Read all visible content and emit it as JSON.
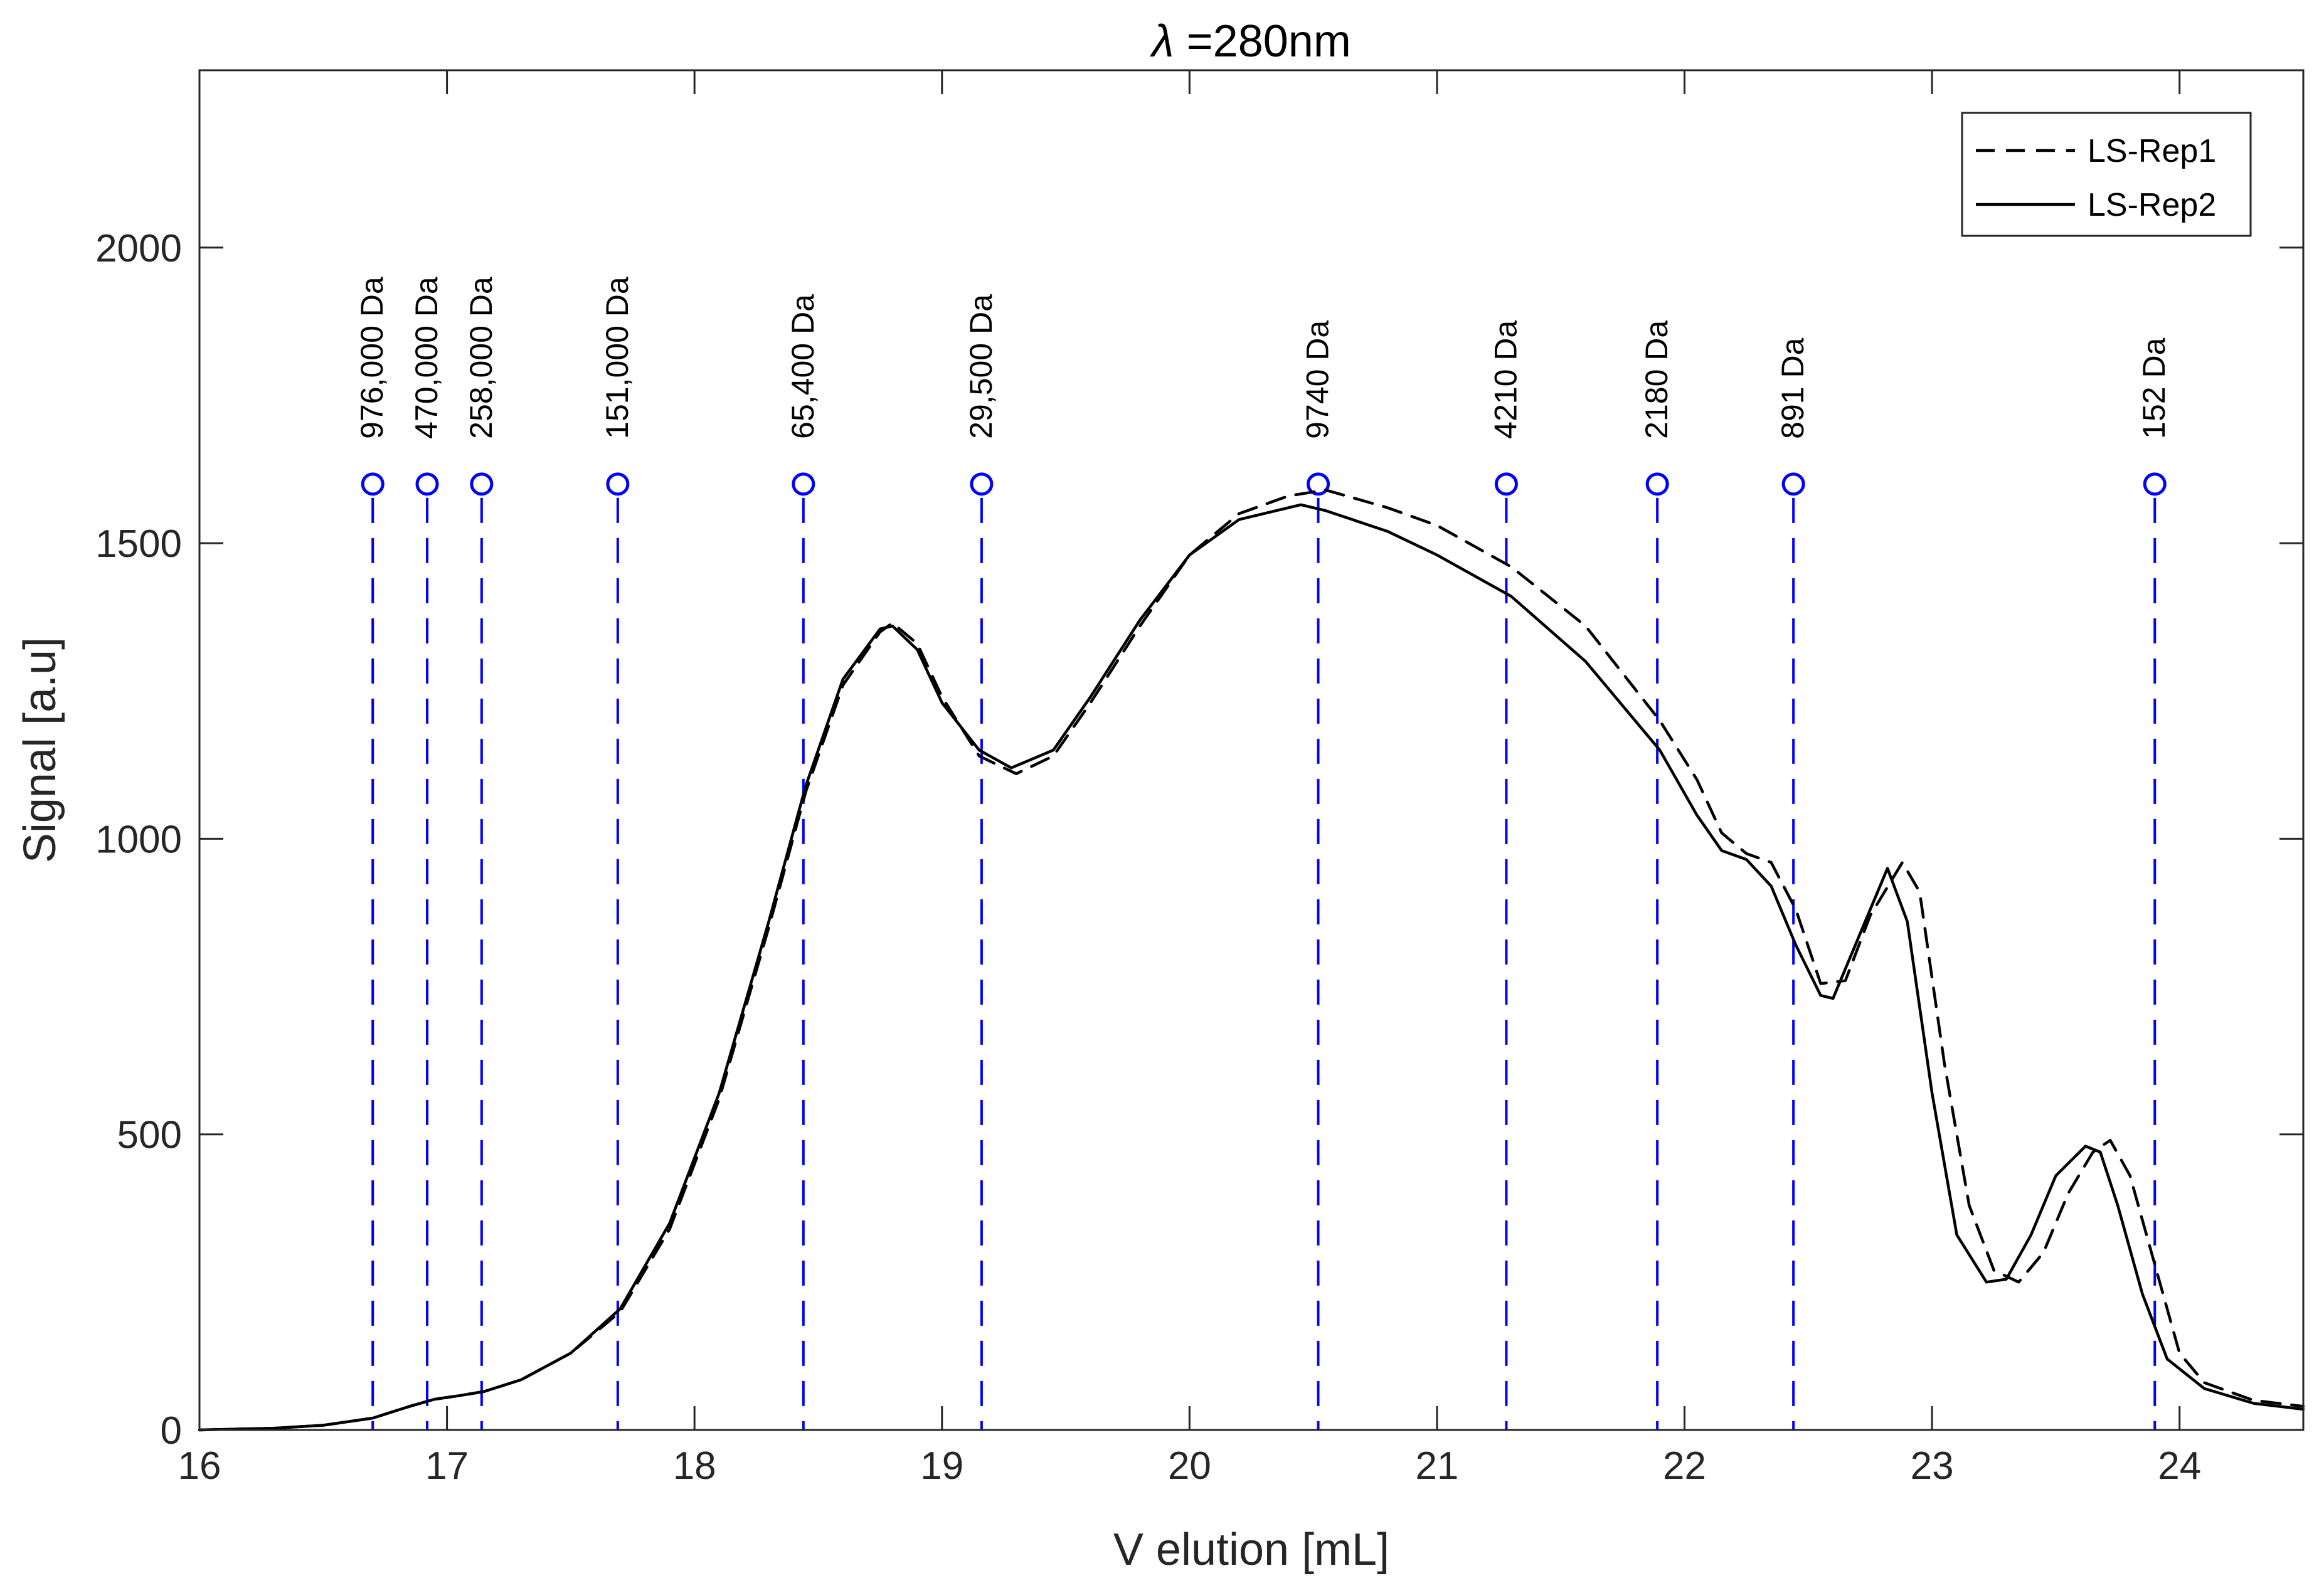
{
  "chart_data": {
    "type": "line",
    "title": "λ =280nm",
    "title_symbol": "λ",
    "title_rest": " =280nm",
    "xlabel": "V elution [mL]",
    "ylabel": "Signal  [a.u]",
    "xlim": [
      16,
      24.5
    ],
    "ylim": [
      0,
      2300
    ],
    "xticks": [
      16,
      17,
      18,
      19,
      20,
      21,
      22,
      23,
      24
    ],
    "yticks": [
      0,
      500,
      1000,
      1500,
      2000
    ],
    "grid": false,
    "legend_position": "top-right",
    "series": [
      {
        "name": "LS-Rep1",
        "style": "dashed",
        "color": "#000000",
        "x": [
          16.0,
          16.3,
          16.5,
          16.7,
          16.85,
          16.95,
          17.05,
          17.15,
          17.3,
          17.5,
          17.7,
          17.9,
          18.1,
          18.3,
          18.45,
          18.6,
          18.75,
          18.8,
          18.9,
          19.0,
          19.15,
          19.3,
          19.45,
          19.6,
          19.8,
          20.0,
          20.2,
          20.4,
          20.55,
          20.8,
          21.0,
          21.3,
          21.6,
          21.9,
          22.05,
          22.15,
          22.25,
          22.35,
          22.45,
          22.55,
          22.65,
          22.75,
          22.88,
          22.95,
          23.05,
          23.15,
          23.25,
          23.35,
          23.45,
          23.55,
          23.65,
          23.72,
          23.8,
          23.9,
          24.0,
          24.1,
          24.3,
          24.5
        ],
        "y": [
          0,
          3,
          8,
          20,
          40,
          52,
          58,
          65,
          85,
          130,
          200,
          340,
          560,
          850,
          1080,
          1260,
          1350,
          1365,
          1330,
          1240,
          1140,
          1110,
          1140,
          1230,
          1360,
          1480,
          1550,
          1580,
          1590,
          1560,
          1530,
          1460,
          1360,
          1200,
          1100,
          1010,
          975,
          960,
          880,
          755,
          760,
          870,
          960,
          910,
          620,
          380,
          270,
          250,
          300,
          400,
          470,
          490,
          430,
          280,
          130,
          80,
          50,
          40
        ]
      },
      {
        "name": "LS-Rep2",
        "style": "solid",
        "color": "#000000",
        "x": [
          16.0,
          16.3,
          16.5,
          16.7,
          16.85,
          16.95,
          17.05,
          17.15,
          17.3,
          17.5,
          17.7,
          17.9,
          18.1,
          18.3,
          18.45,
          18.6,
          18.75,
          18.8,
          18.9,
          19.0,
          19.15,
          19.28,
          19.45,
          19.6,
          19.8,
          20.0,
          20.2,
          20.45,
          20.55,
          20.8,
          21.0,
          21.3,
          21.6,
          21.9,
          22.05,
          22.15,
          22.25,
          22.35,
          22.45,
          22.55,
          22.6,
          22.7,
          22.82,
          22.9,
          23.0,
          23.1,
          23.22,
          23.3,
          23.4,
          23.5,
          23.62,
          23.68,
          23.75,
          23.85,
          23.95,
          24.1,
          24.3,
          24.5
        ],
        "y": [
          0,
          3,
          8,
          20,
          40,
          52,
          58,
          65,
          85,
          130,
          205,
          350,
          570,
          860,
          1090,
          1270,
          1355,
          1360,
          1320,
          1230,
          1150,
          1120,
          1150,
          1240,
          1370,
          1480,
          1540,
          1565,
          1555,
          1520,
          1480,
          1410,
          1300,
          1150,
          1040,
          980,
          965,
          920,
          820,
          735,
          730,
          830,
          950,
          860,
          570,
          330,
          250,
          255,
          330,
          430,
          480,
          470,
          380,
          230,
          120,
          70,
          45,
          35
        ]
      }
    ],
    "markers": {
      "color": "#0000ff",
      "y": 1600,
      "points": [
        {
          "x": 16.7,
          "label": "976,000 Da"
        },
        {
          "x": 16.92,
          "label": "470,000 Da"
        },
        {
          "x": 17.14,
          "label": "258,000 Da"
        },
        {
          "x": 17.69,
          "label": "151,000 Da"
        },
        {
          "x": 18.44,
          "label": "65,400 Da"
        },
        {
          "x": 19.16,
          "label": "29,500 Da"
        },
        {
          "x": 20.52,
          "label": "9740 Da"
        },
        {
          "x": 21.28,
          "label": "4210 Da"
        },
        {
          "x": 21.89,
          "label": "2180 Da"
        },
        {
          "x": 22.44,
          "label": "891 Da"
        },
        {
          "x": 23.9,
          "label": "152 Da"
        }
      ]
    }
  }
}
